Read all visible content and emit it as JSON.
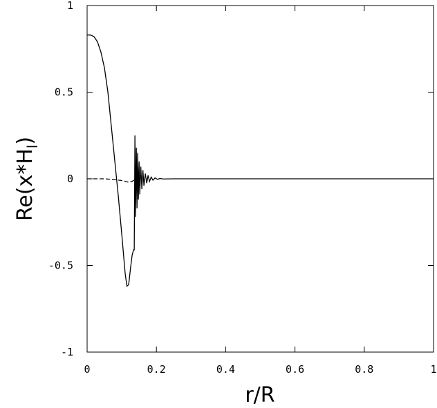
{
  "chart_data": {
    "type": "line",
    "x_label": "r/R",
    "y_label": [
      "Re(x*H",
      "l",
      ")"
    ],
    "xlim": [
      0,
      1
    ],
    "ylim": [
      -1,
      1
    ],
    "xticks": [
      0,
      0.2,
      0.4,
      0.6,
      0.8,
      1
    ],
    "yticks": [
      -1,
      -0.5,
      0,
      0.5,
      1
    ],
    "series": [
      {
        "color": "#000000",
        "dash": false,
        "x": [
          0,
          0.01,
          0.02,
          0.03,
          0.04,
          0.05,
          0.06,
          0.07,
          0.08,
          0.09,
          0.1,
          0.11,
          0.115,
          0.12,
          0.125,
          0.13,
          0.134,
          0.136,
          0.138,
          0.14,
          0.142,
          0.144,
          0.146,
          0.148,
          0.15,
          0.152,
          0.155,
          0.158,
          0.161,
          0.164,
          0.168,
          0.172,
          0.176,
          0.18,
          0.185,
          0.19,
          0.196,
          0.203,
          0.21,
          0.22,
          0.25,
          1
        ],
        "values": [
          0.83,
          0.83,
          0.82,
          0.79,
          0.73,
          0.64,
          0.5,
          0.3,
          0.1,
          -0.1,
          -0.32,
          -0.55,
          -0.62,
          -0.61,
          -0.52,
          -0.44,
          -0.41,
          -0.41,
          0.25,
          -0.22,
          0.18,
          -0.17,
          0.15,
          -0.12,
          0.1,
          -0.09,
          0.07,
          -0.06,
          0.05,
          -0.04,
          0.03,
          -0.025,
          0.02,
          -0.015,
          0.01,
          -0.008,
          0.005,
          -0.003,
          0.002,
          -0.001,
          0,
          0
        ]
      },
      {
        "color": "#000000",
        "dash": true,
        "x": [
          0,
          0.05,
          0.08,
          0.1,
          0.12,
          0.13,
          0.14
        ],
        "values": [
          0,
          0,
          -0.005,
          -0.01,
          -0.02,
          -0.015,
          0
        ]
      }
    ]
  }
}
